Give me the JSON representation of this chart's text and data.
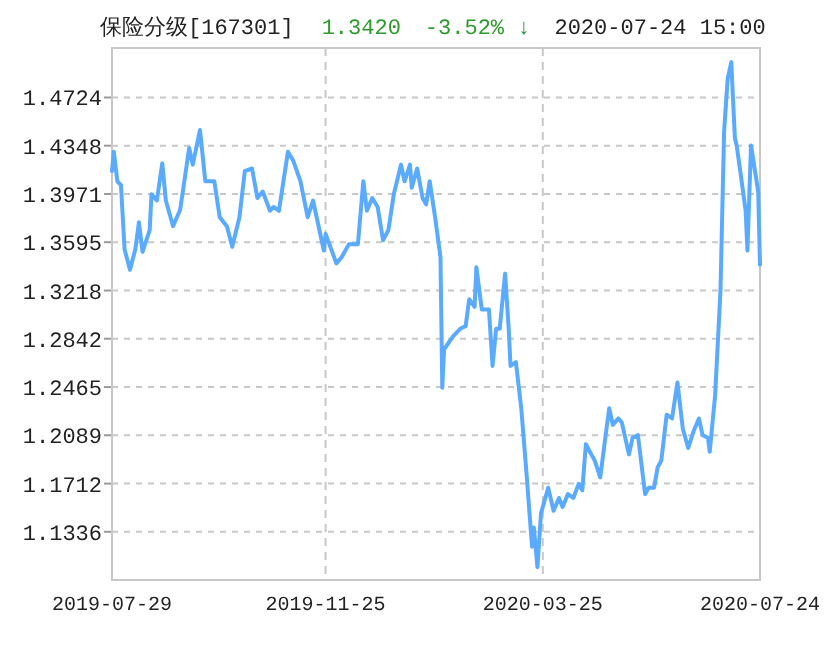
{
  "chart_data": {
    "type": "line",
    "title": "保险分级[167301]",
    "annotations": [
      "1.3420",
      "-3.52% ↓",
      "2020-07-24 15:00"
    ],
    "xlim": [
      "2019-07-29",
      "2020-07-24"
    ],
    "xticks": [
      {
        "value": "2019-07-29",
        "label": "2019-07-29"
      },
      {
        "value": "2019-11-25",
        "label": "2019-11-25"
      },
      {
        "value": "2020-03-25",
        "label": "2020-03-25"
      },
      {
        "value": "2020-07-24",
        "label": "2020-07-24"
      }
    ],
    "ylim": [
      1.096,
      1.511
    ],
    "yticks": [
      1.1336,
      1.1712,
      1.2089,
      1.2465,
      1.2842,
      1.3218,
      1.3595,
      1.3971,
      1.4348,
      1.4724
    ],
    "grid": true,
    "series": [
      {
        "color": "#5aabff",
        "x": [
          "2019-07-29",
          "2019-07-30",
          "2019-08-01",
          "2019-08-03",
          "2019-08-05",
          "2019-08-08",
          "2019-08-11",
          "2019-08-13",
          "2019-08-15",
          "2019-08-19",
          "2019-08-20",
          "2019-08-23",
          "2019-08-26",
          "2019-08-28",
          "2019-09-01",
          "2019-09-05",
          "2019-09-10",
          "2019-09-12",
          "2019-09-16",
          "2019-09-19",
          "2019-09-24",
          "2019-09-27",
          "2019-10-01",
          "2019-10-04",
          "2019-10-08",
          "2019-10-11",
          "2019-10-15",
          "2019-10-18",
          "2019-10-21",
          "2019-10-25",
          "2019-10-27",
          "2019-10-30",
          "2019-11-04",
          "2019-11-07",
          "2019-11-11",
          "2019-11-15",
          "2019-11-18",
          "2019-11-24",
          "2019-11-25",
          "2019-12-01",
          "2019-12-04",
          "2019-12-08",
          "2019-12-13",
          "2019-12-16",
          "2019-12-18",
          "2019-12-21",
          "2019-12-24",
          "2019-12-27",
          "2019-12-30",
          "2020-01-02",
          "2020-01-06",
          "2020-01-08",
          "2020-01-11",
          "2020-01-12",
          "2020-01-15",
          "2020-01-18",
          "2020-01-20",
          "2020-01-22",
          "2020-01-25",
          "2020-01-28",
          "2020-01-29",
          "2020-01-30",
          "2020-02-04",
          "2020-02-08",
          "2020-02-11",
          "2020-02-13",
          "2020-02-16",
          "2020-02-17",
          "2020-02-20",
          "2020-02-24",
          "2020-02-26",
          "2020-02-28",
          "2020-03-01",
          "2020-03-04",
          "2020-03-06",
          "2020-03-07",
          "2020-03-10",
          "2020-03-13",
          "2020-03-16",
          "2020-03-19",
          "2020-03-20",
          "2020-03-22",
          "2020-03-24",
          "2020-03-26",
          "2020-03-28",
          "2020-03-31",
          "2020-04-03",
          "2020-04-05",
          "2020-04-08",
          "2020-04-11",
          "2020-04-14",
          "2020-04-16",
          "2020-04-18",
          "2020-04-21",
          "2020-04-23",
          "2020-04-26",
          "2020-04-29",
          "2020-05-01",
          "2020-05-03",
          "2020-05-06",
          "2020-05-08",
          "2020-05-12",
          "2020-05-14",
          "2020-05-17",
          "2020-05-21",
          "2020-05-23",
          "2020-05-26",
          "2020-05-28",
          "2020-05-30",
          "2020-06-02",
          "2020-06-05",
          "2020-06-08",
          "2020-06-11",
          "2020-06-14",
          "2020-06-17",
          "2020-06-20",
          "2020-06-22",
          "2020-06-25",
          "2020-06-26",
          "2020-06-29",
          "2020-07-02",
          "2020-07-04",
          "2020-07-06",
          "2020-07-08",
          "2020-07-10",
          "2020-07-11",
          "2020-07-13",
          "2020-07-16",
          "2020-07-17",
          "2020-07-19",
          "2020-07-23",
          "2020-07-24"
        ],
        "values": [
          1.415,
          1.43,
          1.407,
          1.404,
          1.354,
          1.338,
          1.354,
          1.375,
          1.352,
          1.369,
          1.397,
          1.392,
          1.421,
          1.392,
          1.372,
          1.385,
          1.433,
          1.42,
          1.447,
          1.407,
          1.407,
          1.379,
          1.372,
          1.356,
          1.379,
          1.415,
          1.417,
          1.394,
          1.399,
          1.384,
          1.387,
          1.384,
          1.43,
          1.423,
          1.407,
          1.379,
          1.392,
          1.353,
          1.366,
          1.343,
          1.348,
          1.358,
          1.358,
          1.407,
          1.384,
          1.394,
          1.387,
          1.361,
          1.369,
          1.397,
          1.42,
          1.407,
          1.42,
          1.402,
          1.417,
          1.394,
          1.389,
          1.407,
          1.379,
          1.348,
          1.246,
          1.276,
          1.286,
          1.292,
          1.294,
          1.315,
          1.309,
          1.34,
          1.307,
          1.307,
          1.263,
          1.292,
          1.292,
          1.335,
          1.292,
          1.263,
          1.266,
          1.23,
          1.178,
          1.122,
          1.137,
          1.106,
          1.148,
          1.158,
          1.168,
          1.15,
          1.16,
          1.153,
          1.163,
          1.16,
          1.171,
          1.166,
          1.202,
          1.194,
          1.189,
          1.176,
          1.209,
          1.23,
          1.217,
          1.222,
          1.219,
          1.194,
          1.207,
          1.209,
          1.163,
          1.168,
          1.168,
          1.184,
          1.189,
          1.225,
          1.222,
          1.25,
          1.214,
          1.199,
          1.212,
          1.222,
          1.209,
          1.207,
          1.196,
          1.24,
          1.322,
          1.446,
          1.487,
          1.5,
          1.441,
          1.435,
          1.415,
          1.384,
          1.353,
          1.435,
          1.399,
          1.342
        ]
      }
    ]
  }
}
